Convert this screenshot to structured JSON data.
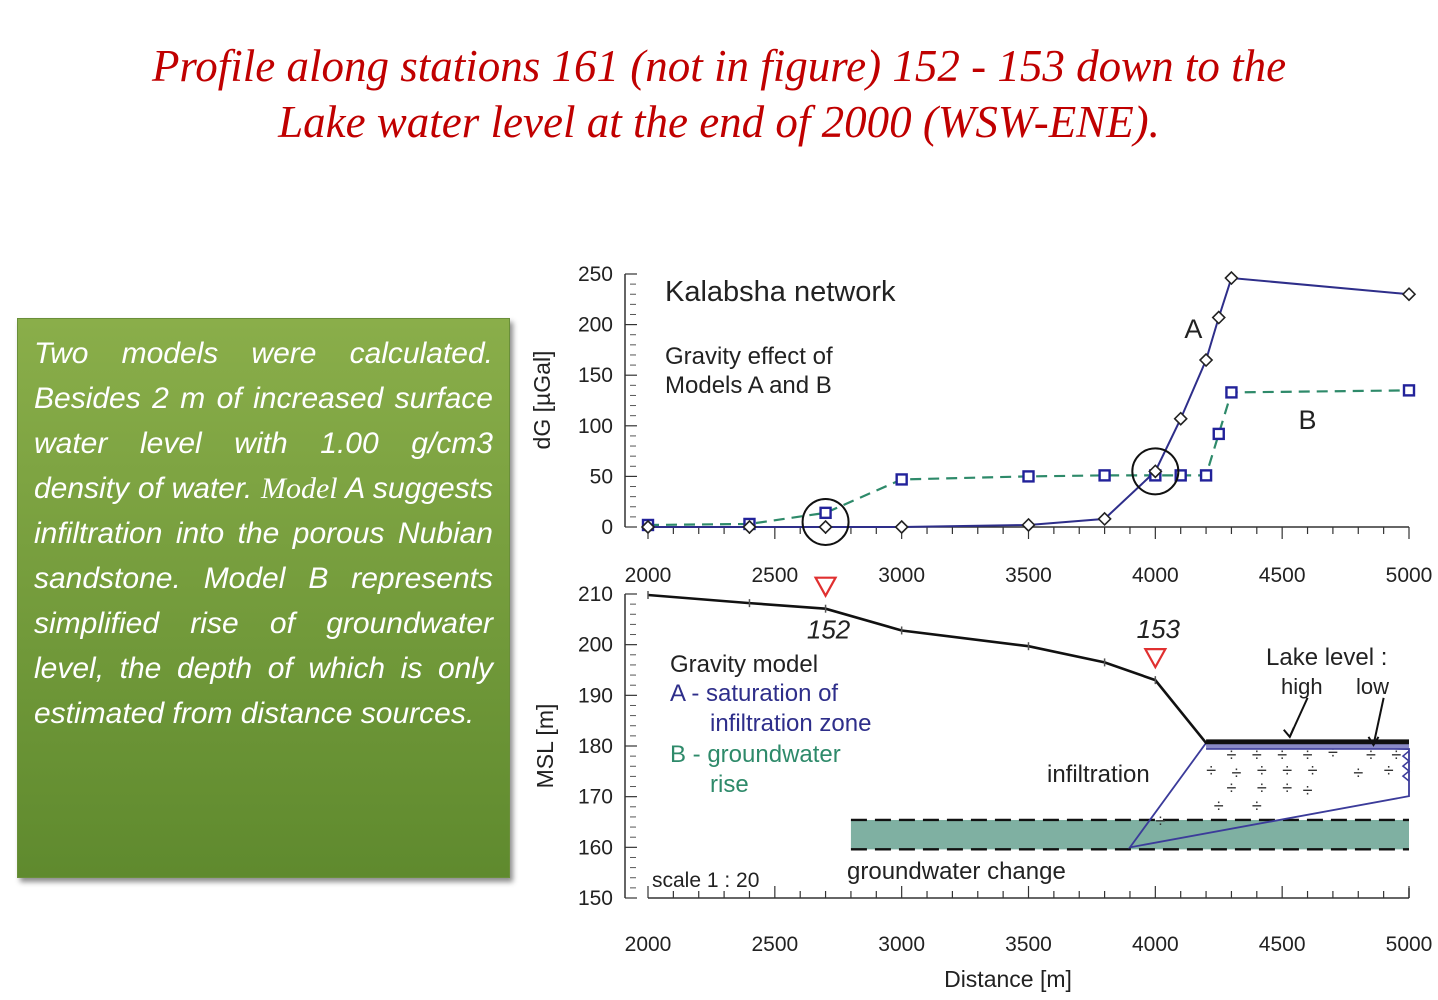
{
  "title": {
    "line1": "Profile along stations 161 (not in figure) 152 - 153 down to the",
    "line2": "Lake water  level at the end of 2000 (WSW-ENE)."
  },
  "note": {
    "text_before": "Two models were calculated. Besides 2 m of increased surface water level with 1.00 g/cm3 density of water. ",
    "model_word": "Model",
    "text_after": " A suggests infiltration into the porous Nubian sandstone. Model B represents simplified rise of groundwater level, the depth of which is only estimated from distance sources."
  },
  "colors": {
    "title": "#c00000",
    "box_green": "#76a03c",
    "series_a": "#2e2e8a",
    "series_b": "#2e8a6a",
    "marker_b": "#22229a",
    "groundwater_fill": "#7fb0a2",
    "lake_fill": "#8a8ac8",
    "station_marker": "#e03030"
  },
  "chart_data": [
    {
      "type": "line",
      "title": "Kalabsha network",
      "subtitle": "Gravity effect of\nModels A and B",
      "ylabel": "dG [µGal]",
      "xlim": [
        2000,
        5000
      ],
      "ylim": [
        0,
        250
      ],
      "xticks": [
        2000,
        2500,
        3000,
        3500,
        4000,
        4500,
        5000
      ],
      "yticks": [
        0,
        50,
        100,
        150,
        200,
        250
      ],
      "series": [
        {
          "name": "A",
          "marker": "diamond",
          "line": "solid",
          "x": [
            2000,
            2400,
            2700,
            3000,
            3500,
            3800,
            4000,
            4100,
            4200,
            4250,
            4300,
            5000
          ],
          "y": [
            0,
            0,
            0,
            0,
            2,
            8,
            55,
            107,
            165,
            207,
            246,
            230
          ]
        },
        {
          "name": "B",
          "marker": "square",
          "line": "dashed",
          "x": [
            2000,
            2400,
            2700,
            3000,
            3500,
            3800,
            4000,
            4100,
            4200,
            4250,
            4300,
            5000
          ],
          "y": [
            2,
            3,
            14,
            47,
            50,
            51,
            51,
            51,
            51,
            92,
            133,
            135
          ]
        }
      ],
      "annotations": [
        "A",
        "B"
      ],
      "circled_points": [
        [
          2700,
          5
        ],
        [
          4000,
          55
        ]
      ]
    },
    {
      "type": "line",
      "ylabel": "MSL [m]",
      "xlabel": "Distance [m]",
      "xlim": [
        2000,
        5000
      ],
      "ylim": [
        150,
        210
      ],
      "xticks": [
        2000,
        2500,
        3000,
        3500,
        4000,
        4500,
        5000
      ],
      "yticks": [
        150,
        160,
        170,
        180,
        190,
        200,
        210
      ],
      "series": [
        {
          "name": "surface",
          "x": [
            2000,
            2400,
            2700,
            3000,
            3500,
            3800,
            4000,
            4200,
            5000
          ],
          "y": [
            209.8,
            208.2,
            207.1,
            202.8,
            199.7,
            196.5,
            193,
            180.6,
            180.6
          ]
        }
      ],
      "stations": [
        {
          "label": "152",
          "x": 2700,
          "y": 207.1
        },
        {
          "label": "153",
          "x": 4000,
          "y": 193
        }
      ],
      "labels": {
        "gravity_model": "Gravity model",
        "model_a_line1": "A - saturation of",
        "model_a_line2": "infiltration zone",
        "model_b_line1": "B - groundwater",
        "model_b_line2": "rise",
        "lake_level": "Lake level :",
        "high": "high",
        "low": "low",
        "infiltration": "infiltration",
        "groundwater_change": "groundwater change",
        "scale": "scale 1 : 20"
      },
      "lake_level": {
        "x": [
          4200,
          5000
        ],
        "high": 181,
        "low": 179.4
      },
      "infiltration_zone": [
        [
          4200,
          180.6
        ],
        [
          5000,
          179.4
        ],
        [
          5000,
          170.1
        ],
        [
          3900,
          160
        ]
      ],
      "groundwater_band": {
        "x": [
          2800,
          5000
        ],
        "y": [
          159.6,
          165.4
        ]
      }
    }
  ]
}
